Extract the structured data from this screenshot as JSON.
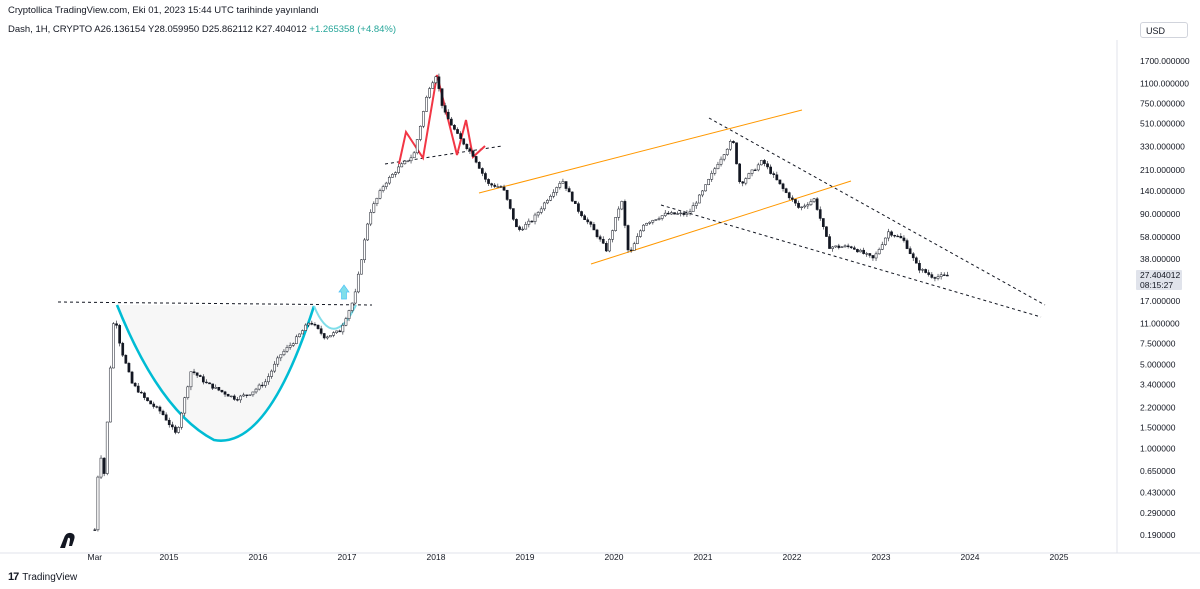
{
  "header": {
    "publish_line": "Cryptollica TradingView.com, Eki 01, 2023 15:44 UTC tarihinde yayınlandı",
    "symbol_line": "Dash, 1H, CRYPTO  A26.136154  Y28.059950  D25.862112  K27.404012",
    "change": "+1.265358 (+4.84%)"
  },
  "currency": "USD",
  "price_label": {
    "price": "27.404012",
    "countdown": "08:15:27"
  },
  "footer": {
    "brand": "TradingView",
    "logo": "17"
  },
  "colors": {
    "bull": "#9e9e9e",
    "bear": "#131722",
    "cup": "#00bcd4",
    "channel": "#ff9800",
    "head_shoulders": "#f23645",
    "arrow": "#80deea",
    "dashed": "#131722"
  },
  "chart_data": {
    "type": "candlestick",
    "scale": "log",
    "y_ticks": [
      "1700.000000",
      "1100.000000",
      "750.000000",
      "510.000000",
      "330.000000",
      "210.000000",
      "140.000000",
      "90.000000",
      "58.000000",
      "38.000000",
      "17.000000",
      "11.000000",
      "7.500000",
      "5.000000",
      "3.400000",
      "2.200000",
      "1.500000",
      "1.000000",
      "0.650000",
      "0.430000",
      "0.290000",
      "0.190000"
    ],
    "x_ticks": [
      "Mar",
      "2015",
      "2016",
      "2017",
      "2018",
      "2019",
      "2020",
      "2021",
      "2022",
      "2023",
      "2024",
      "2025"
    ],
    "price_path": [
      [
        "2014-03",
        0.21
      ],
      [
        "2014-03-20",
        1.0
      ],
      [
        "2014-04-10",
        0.6
      ],
      [
        "2014-05-01",
        4.0
      ],
      [
        "2014-05-20",
        14.0
      ],
      [
        "2014-06-15",
        7.0
      ],
      [
        "2014-08",
        3.5
      ],
      [
        "2014-10",
        2.5
      ],
      [
        "2014-12",
        2.0
      ],
      [
        "2015-02",
        1.3
      ],
      [
        "2015-04",
        4.5
      ],
      [
        "2015-06",
        3.5
      ],
      [
        "2015-08",
        3.0
      ],
      [
        "2015-10",
        2.6
      ],
      [
        "2015-12",
        2.9
      ],
      [
        "2016-02",
        3.6
      ],
      [
        "2016-04",
        6.0
      ],
      [
        "2016-06",
        8.0
      ],
      [
        "2016-08",
        11.5
      ],
      [
        "2016-10",
        8.5
      ],
      [
        "2016-12",
        9.5
      ],
      [
        "2017-02",
        18.0
      ],
      [
        "2017-04",
        90.0
      ],
      [
        "2017-06",
        160.0
      ],
      [
        "2017-08",
        220.0
      ],
      [
        "2017-10",
        280.0
      ],
      [
        "2017-12",
        1000.0
      ],
      [
        "2018-01",
        1300.0
      ],
      [
        "2018-02",
        650.0
      ],
      [
        "2018-04",
        400.0
      ],
      [
        "2018-06",
        280.0
      ],
      [
        "2018-08",
        160.0
      ],
      [
        "2018-10",
        150.0
      ],
      [
        "2018-12",
        65.0
      ],
      [
        "2019-02",
        80.0
      ],
      [
        "2019-04",
        120.0
      ],
      [
        "2019-06",
        175.0
      ],
      [
        "2019-08",
        100.0
      ],
      [
        "2019-10",
        70.0
      ],
      [
        "2019-12",
        45.0
      ],
      [
        "2020-02",
        120.0
      ],
      [
        "2020-03",
        40.0
      ],
      [
        "2020-05",
        75.0
      ],
      [
        "2020-08",
        90.0
      ],
      [
        "2020-11",
        90.0
      ],
      [
        "2021-01",
        140.0
      ],
      [
        "2021-03",
        240.0
      ],
      [
        "2021-05",
        380.0
      ],
      [
        "2021-06",
        160.0
      ],
      [
        "2021-09",
        250.0
      ],
      [
        "2021-12",
        140.0
      ],
      [
        "2022-02",
        100.0
      ],
      [
        "2022-04",
        120.0
      ],
      [
        "2022-06",
        48.0
      ],
      [
        "2022-09",
        48.0
      ],
      [
        "2022-12",
        38.0
      ],
      [
        "2023-02",
        64.0
      ],
      [
        "2023-04",
        55.0
      ],
      [
        "2023-06",
        32.0
      ],
      [
        "2023-08",
        27.0
      ],
      [
        "2023-10",
        27.4
      ]
    ],
    "last_price": 27.404012
  }
}
